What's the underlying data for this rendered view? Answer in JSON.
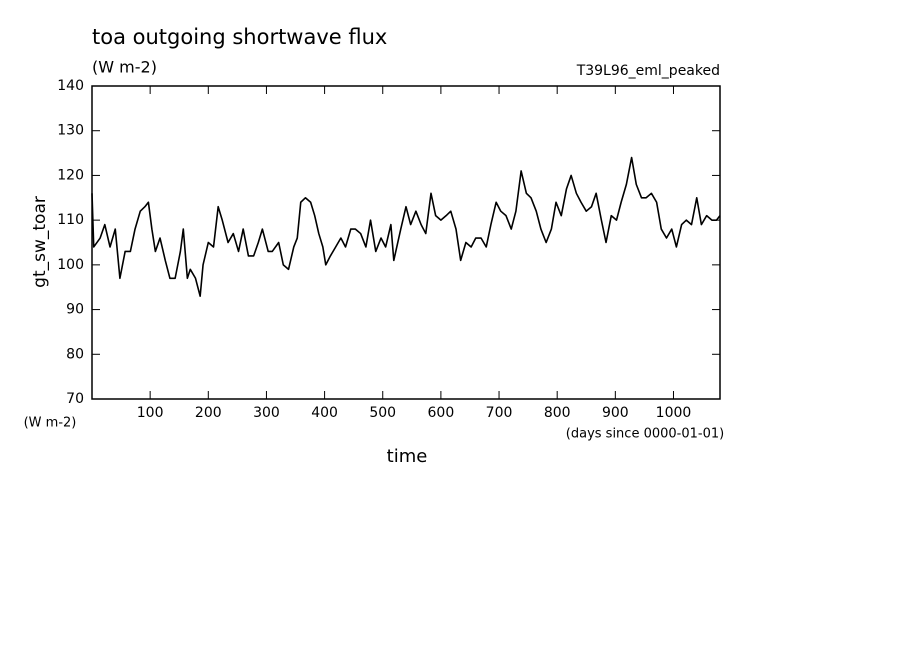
{
  "chart_data": {
    "type": "line",
    "title": "toa outgoing shortwave flux",
    "subtitle": "(W m-2)",
    "run_label": "T39L96_eml_peaked",
    "y_axis_label": "gt_sw_toar",
    "y_unit_label": "(W m-2)",
    "x_axis_label": "time",
    "x_unit_label": "(days since 0000-01-01)",
    "xlim": [
      0,
      1080
    ],
    "ylim": [
      70,
      140
    ],
    "xticks": [
      100,
      200,
      300,
      400,
      500,
      600,
      700,
      800,
      900,
      1000
    ],
    "yticks": [
      70,
      80,
      90,
      100,
      110,
      120,
      130,
      140
    ],
    "x": [
      0,
      3,
      14,
      22,
      31,
      40,
      48,
      57,
      66,
      74,
      83,
      91,
      97,
      103,
      109,
      117,
      126,
      134,
      143,
      152,
      157,
      164,
      169,
      178,
      186,
      191,
      200,
      209,
      217,
      224,
      234,
      243,
      252,
      260,
      269,
      278,
      286,
      293,
      303,
      310,
      321,
      329,
      338,
      347,
      353,
      359,
      367,
      376,
      383,
      390,
      397,
      402,
      410,
      419,
      428,
      436,
      445,
      453,
      462,
      471,
      479,
      488,
      497,
      505,
      514,
      519,
      531,
      540,
      548,
      557,
      566,
      574,
      583,
      591,
      600,
      609,
      617,
      626,
      634,
      643,
      652,
      660,
      669,
      678,
      686,
      695,
      703,
      712,
      721,
      729,
      738,
      747,
      755,
      764,
      772,
      781,
      790,
      798,
      807,
      816,
      824,
      833,
      841,
      850,
      859,
      867,
      876,
      884,
      893,
      902,
      910,
      919,
      928,
      936,
      945,
      953,
      962,
      971,
      979,
      988,
      997,
      1005,
      1014,
      1022,
      1031,
      1040,
      1048,
      1057,
      1066,
      1074,
      1080
    ],
    "series": [
      {
        "color": "#000000",
        "values": [
          116,
          104,
          106,
          109,
          104,
          108,
          97,
          103,
          103,
          108,
          112,
          113,
          114,
          108,
          103,
          106,
          101,
          97,
          97,
          103,
          108,
          97,
          99,
          97,
          93,
          100,
          105,
          104,
          113,
          110,
          105,
          107,
          103,
          108,
          102,
          102,
          105,
          108,
          103,
          103,
          105,
          100,
          99,
          104,
          106,
          114,
          115,
          114,
          111,
          107,
          104,
          100,
          102,
          104,
          106,
          104,
          108,
          108,
          107,
          104,
          110,
          103,
          106,
          104,
          109,
          101,
          108,
          113,
          109,
          112,
          109,
          107,
          116,
          111,
          110,
          111,
          112,
          108,
          101,
          105,
          104,
          106,
          106,
          104,
          109,
          114,
          112,
          111,
          108,
          112,
          121,
          116,
          115,
          112,
          108,
          105,
          108,
          114,
          111,
          117,
          120,
          116,
          114,
          112,
          113,
          116,
          110,
          105,
          111,
          110,
          114,
          118,
          124,
          118,
          115,
          115,
          116,
          114,
          108,
          106,
          108,
          104,
          109,
          110,
          109,
          115,
          109,
          111,
          110,
          110,
          111
        ]
      }
    ]
  }
}
